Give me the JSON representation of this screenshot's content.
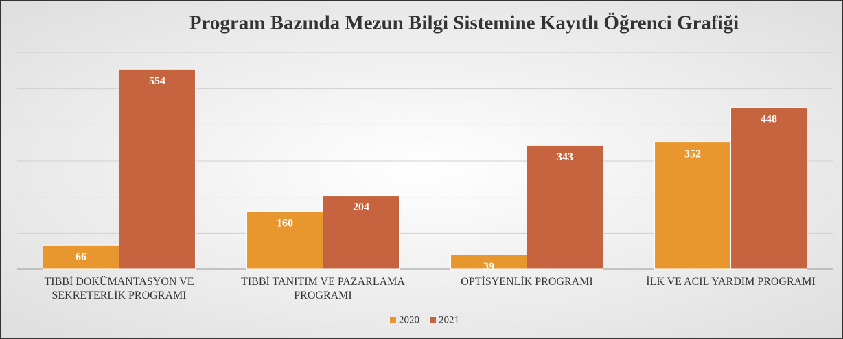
{
  "chart_data": {
    "type": "bar",
    "title": "Program Bazında Mezun Bilgi Sistemine Kayıtlı Öğrenci Grafiği",
    "categories": [
      "TIBBİ DOKÜMANTASYON VE SEKRETERLİK PROGRAMI",
      "TIBBİ TANITIM VE PAZARLAMA PROGRAMI",
      "OPTİSYENLİK PROGRAMI",
      "İLK VE ACIL YARDIM PROGRAMI"
    ],
    "series": [
      {
        "name": "2020",
        "color": "#e8962e",
        "values": [
          66,
          160,
          39,
          352
        ]
      },
      {
        "name": "2021",
        "color": "#c5643e",
        "values": [
          554,
          204,
          343,
          448
        ]
      }
    ],
    "ylim": [
      0,
      600
    ],
    "yticks": [
      0,
      100,
      200,
      300,
      400,
      500,
      600
    ],
    "grid": true,
    "legend": "bottom"
  }
}
